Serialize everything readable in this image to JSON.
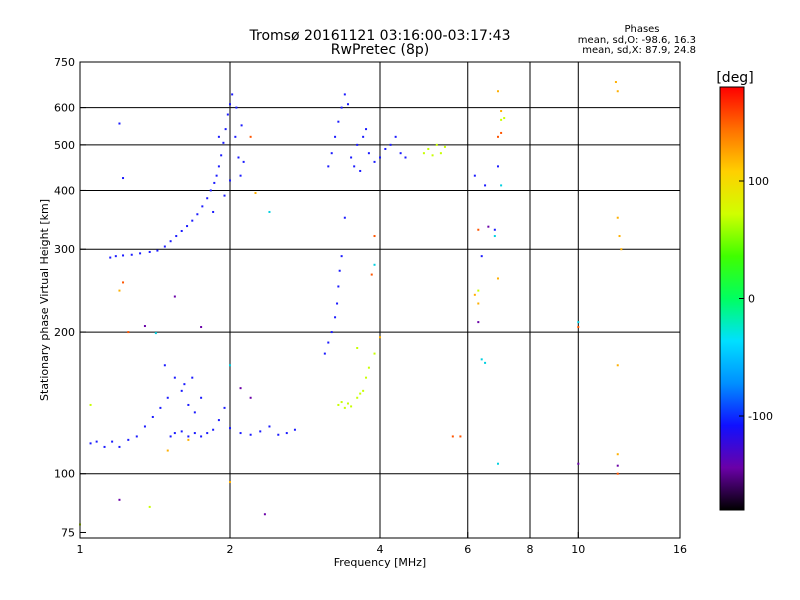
{
  "header": {
    "title": "Tromsø 20161121 03:16:00-03:17:43",
    "subtitle": "RwPretec (8p)",
    "stats_title": "Phases",
    "stats_o": "mean, sd,O: -98.6, 16.3",
    "stats_x": "mean, sd,X:  87.9, 24.8"
  },
  "chart_data": {
    "type": "scatter",
    "xlabel": "Frequency [MHz]",
    "ylabel": "Stationary phase Virtual Height [km]",
    "xscale": "log",
    "yscale": "log",
    "xlim": [
      1,
      16
    ],
    "ylim": [
      73,
      750
    ],
    "xticks": [
      1,
      2,
      4,
      6,
      8,
      10,
      16
    ],
    "yticks": [
      75,
      100,
      200,
      300,
      400,
      500,
      600,
      750
    ],
    "grid_x": [
      2,
      4,
      6,
      8,
      10
    ],
    "grid_y": [
      100,
      200,
      300,
      400,
      500,
      600
    ],
    "colorbar": {
      "label": "[deg]",
      "range": [
        -180,
        180
      ],
      "ticks": [
        -100,
        0,
        100
      ],
      "colors": [
        "#000000",
        "#6a00a8",
        "#1010ff",
        "#0090ff",
        "#00e0ff",
        "#00ff60",
        "#40ff00",
        "#d0ff00",
        "#ffd000",
        "#ff7000",
        "#ff0000"
      ]
    },
    "series": [
      {
        "color": "#1a1aff",
        "points": [
          [
            1.15,
            288
          ],
          [
            1.18,
            290
          ],
          [
            1.22,
            291
          ],
          [
            1.27,
            292
          ],
          [
            1.32,
            294
          ],
          [
            1.38,
            296
          ],
          [
            1.43,
            298
          ],
          [
            1.48,
            304
          ],
          [
            1.52,
            312
          ],
          [
            1.56,
            320
          ],
          [
            1.6,
            328
          ],
          [
            1.64,
            336
          ],
          [
            1.68,
            345
          ],
          [
            1.72,
            356
          ],
          [
            1.76,
            370
          ],
          [
            1.8,
            385
          ],
          [
            1.83,
            400
          ],
          [
            1.86,
            415
          ],
          [
            1.88,
            430
          ],
          [
            1.9,
            450
          ],
          [
            1.92,
            475
          ],
          [
            1.94,
            505
          ],
          [
            1.96,
            540
          ],
          [
            1.98,
            580
          ],
          [
            2.0,
            610
          ],
          [
            2.02,
            640
          ],
          [
            2.05,
            520
          ],
          [
            2.08,
            470
          ],
          [
            2.1,
            430
          ],
          [
            2.13,
            460
          ],
          [
            1.85,
            360
          ],
          [
            1.95,
            390
          ],
          [
            2.06,
            600
          ],
          [
            2.11,
            550
          ],
          [
            1.9,
            520
          ],
          [
            2.0,
            420
          ],
          [
            3.15,
            450
          ],
          [
            3.2,
            480
          ],
          [
            3.25,
            520
          ],
          [
            3.3,
            560
          ],
          [
            3.35,
            600
          ],
          [
            3.4,
            640
          ],
          [
            3.5,
            470
          ],
          [
            3.6,
            500
          ],
          [
            3.7,
            520
          ],
          [
            3.8,
            480
          ],
          [
            3.9,
            460
          ],
          [
            4.0,
            470
          ],
          [
            4.1,
            490
          ],
          [
            4.2,
            500
          ],
          [
            4.3,
            520
          ],
          [
            4.4,
            480
          ],
          [
            4.5,
            470
          ],
          [
            3.55,
            450
          ],
          [
            3.75,
            540
          ],
          [
            3.45,
            610
          ],
          [
            3.65,
            440
          ],
          [
            1.05,
            116
          ],
          [
            1.08,
            117
          ],
          [
            1.12,
            114
          ],
          [
            1.16,
            117
          ],
          [
            1.2,
            114
          ],
          [
            1.25,
            118
          ],
          [
            1.3,
            120
          ],
          [
            1.35,
            126
          ],
          [
            1.4,
            132
          ],
          [
            1.45,
            138
          ],
          [
            1.5,
            145
          ],
          [
            1.52,
            120
          ],
          [
            1.55,
            122
          ],
          [
            1.6,
            123
          ],
          [
            1.65,
            120
          ],
          [
            1.7,
            122
          ],
          [
            1.75,
            120
          ],
          [
            1.8,
            122
          ],
          [
            1.85,
            124
          ],
          [
            1.9,
            130
          ],
          [
            1.95,
            138
          ],
          [
            2.0,
            125
          ],
          [
            2.1,
            122
          ],
          [
            2.2,
            121
          ],
          [
            2.3,
            123
          ],
          [
            2.4,
            126
          ],
          [
            2.5,
            121
          ],
          [
            2.6,
            122
          ],
          [
            2.7,
            124
          ],
          [
            1.48,
            170
          ],
          [
            1.55,
            160
          ],
          [
            1.6,
            150
          ],
          [
            1.65,
            140
          ],
          [
            1.7,
            135
          ],
          [
            1.75,
            145
          ],
          [
            1.62,
            155
          ],
          [
            1.68,
            160
          ],
          [
            3.1,
            180
          ],
          [
            3.15,
            190
          ],
          [
            3.2,
            200
          ],
          [
            3.25,
            215
          ],
          [
            3.28,
            230
          ],
          [
            3.3,
            250
          ],
          [
            3.32,
            270
          ],
          [
            3.35,
            290
          ],
          [
            1.2,
            555
          ],
          [
            1.22,
            425
          ],
          [
            3.4,
            350
          ],
          [
            6.2,
            430
          ],
          [
            6.4,
            290
          ],
          [
            6.8,
            330
          ],
          [
            6.9,
            450
          ],
          [
            6.5,
            410
          ]
        ]
      },
      {
        "color": "#6a00a8",
        "points": [
          [
            1.35,
            206
          ],
          [
            1.55,
            238
          ],
          [
            1.75,
            205
          ],
          [
            2.1,
            152
          ],
          [
            2.2,
            145
          ],
          [
            2.35,
            82
          ],
          [
            1.2,
            88
          ],
          [
            6.3,
            210
          ],
          [
            6.6,
            335
          ],
          [
            10.0,
            105
          ],
          [
            12.0,
            104
          ]
        ]
      },
      {
        "color": "#00d0e0",
        "points": [
          [
            1.42,
            199
          ],
          [
            2.0,
            170
          ],
          [
            2.4,
            360
          ],
          [
            3.9,
            278
          ],
          [
            6.4,
            175
          ],
          [
            6.5,
            172
          ],
          [
            6.8,
            320
          ],
          [
            6.9,
            105
          ],
          [
            7.0,
            410
          ],
          [
            10.0,
            210
          ]
        ]
      },
      {
        "color": "#c8ff00",
        "points": [
          [
            3.3,
            140
          ],
          [
            3.35,
            142
          ],
          [
            3.4,
            138
          ],
          [
            3.45,
            141
          ],
          [
            3.5,
            139
          ],
          [
            3.6,
            145
          ],
          [
            3.65,
            148
          ],
          [
            3.7,
            150
          ],
          [
            3.75,
            160
          ],
          [
            3.8,
            168
          ],
          [
            3.9,
            180
          ],
          [
            3.6,
            185
          ],
          [
            4.9,
            480
          ],
          [
            5.0,
            490
          ],
          [
            5.1,
            475
          ],
          [
            5.2,
            500
          ],
          [
            5.3,
            480
          ],
          [
            5.4,
            495
          ],
          [
            1.05,
            140
          ],
          [
            1.0,
            78
          ],
          [
            1.38,
            85
          ],
          [
            6.3,
            245
          ],
          [
            7.0,
            565
          ],
          [
            7.1,
            570
          ]
        ]
      },
      {
        "color": "#ffb000",
        "points": [
          [
            1.2,
            245
          ],
          [
            1.65,
            118
          ],
          [
            2.25,
            395
          ],
          [
            4.0,
            195
          ],
          [
            6.2,
            240
          ],
          [
            6.3,
            230
          ],
          [
            6.9,
            260
          ],
          [
            12.0,
            350
          ],
          [
            12.1,
            320
          ],
          [
            12.2,
            300
          ],
          [
            12.0,
            170
          ],
          [
            12.0,
            110
          ],
          [
            11.9,
            680
          ],
          [
            12.0,
            650
          ],
          [
            6.9,
            650
          ],
          [
            7.0,
            590
          ],
          [
            2.0,
            96
          ],
          [
            1.5,
            112
          ]
        ]
      },
      {
        "color": "#ff5500",
        "points": [
          [
            1.22,
            255
          ],
          [
            1.25,
            200
          ],
          [
            2.2,
            520
          ],
          [
            3.9,
            320
          ],
          [
            3.85,
            265
          ],
          [
            5.6,
            120
          ],
          [
            5.8,
            120
          ],
          [
            6.3,
            330
          ],
          [
            6.9,
            520
          ],
          [
            7.0,
            530
          ],
          [
            10.0,
            205
          ],
          [
            12.0,
            100
          ]
        ]
      }
    ]
  }
}
